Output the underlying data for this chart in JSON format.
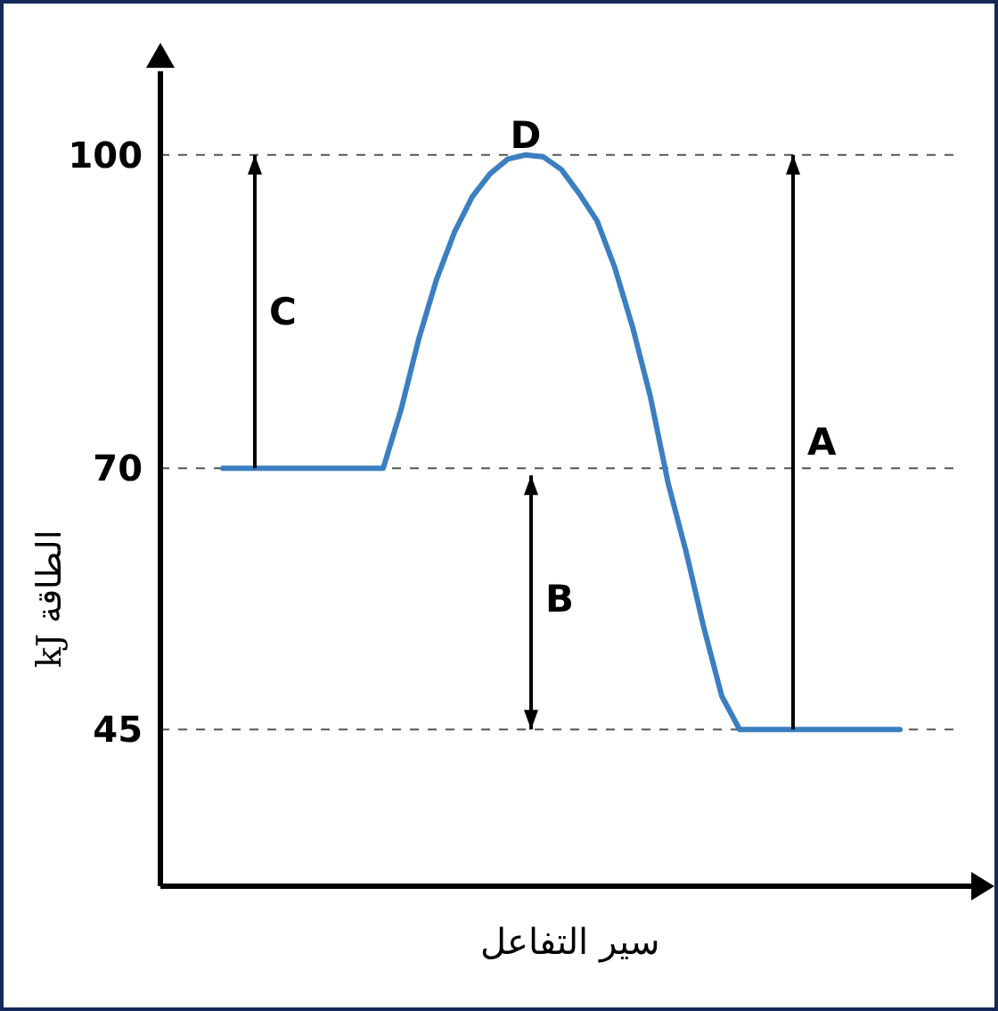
{
  "chart_data": {
    "type": "line",
    "xlabel": "سير التفاعل",
    "ylabel": "الطاقة kJ",
    "categories": [
      null,
      null,
      null,
      null,
      null,
      null,
      null,
      null,
      null,
      null,
      null,
      null,
      null,
      null,
      null,
      null,
      null,
      null,
      null,
      null,
      null,
      null,
      null,
      null,
      null,
      null,
      null,
      null,
      null,
      null,
      null,
      null,
      null,
      null,
      null,
      null,
      null,
      null,
      null,
      null,
      null,
      null,
      null,
      null,
      null
    ],
    "series": [
      {
        "color": "#3b7fc0",
        "values": [
          null,
          null,
          null,
          70,
          70,
          70,
          70,
          70,
          70,
          70,
          70,
          70,
          70,
          75.6,
          82.4,
          88.1,
          92.6,
          96.0,
          98.2,
          99.6,
          100,
          99.8,
          98.6,
          96.3,
          93.7,
          89.2,
          83.5,
          76.8,
          68.5,
          62.0,
          54.7,
          48.2,
          45,
          45,
          45,
          45,
          45,
          45,
          45,
          45,
          45,
          45,
          null,
          null,
          null
        ]
      }
    ],
    "ylim": [
      30,
      108
    ],
    "yticks": [
      45,
      70,
      100
    ],
    "ref_lines": [
      {
        "axis": "y",
        "value": 100,
        "color": "#555555",
        "line_style": "dashed"
      },
      {
        "axis": "y",
        "value": 70,
        "color": "#555555",
        "line_style": "dashed"
      },
      {
        "axis": "y",
        "value": 45,
        "color": "#555555",
        "line_style": "dashed"
      }
    ],
    "annotations": [
      "A",
      "B",
      "C",
      "D"
    ],
    "marker": "none",
    "line_style": "solid"
  }
}
